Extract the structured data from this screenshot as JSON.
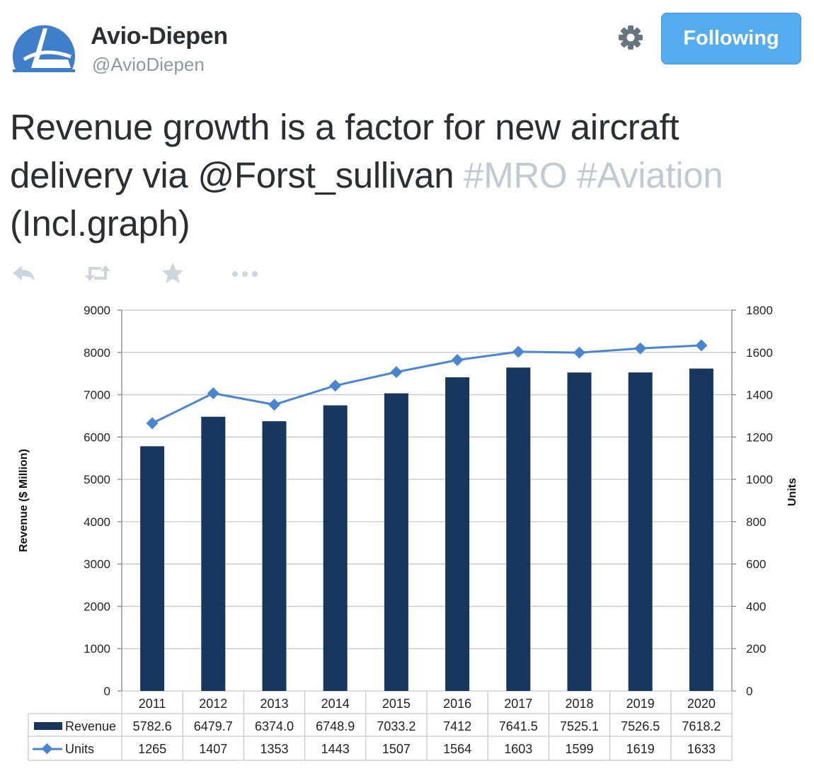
{
  "tweet": {
    "author_name": "Avio-Diepen",
    "author_handle": "@AvioDiepen",
    "follow_label": "Following",
    "text_parts": {
      "line1": "Revenue growth is a factor for new aircraft",
      "line2_prefix": "delivery via @Forst_sullivan",
      "hashtag1": "#MRO",
      "hashtag2": "#Aviation",
      "line3": "(Incl.graph)"
    },
    "actions": {
      "reply_icon": "reply-icon",
      "retweet_icon": "retweet-icon",
      "favorite_icon": "star-icon",
      "more_icon": "more-icon"
    }
  },
  "colors": {
    "brand_blue": "#55acee",
    "bar": "#17375e",
    "line": "#4a86d0",
    "hashtag": "#bfcbd3"
  },
  "chart_data": {
    "type": "bar",
    "categories": [
      "2011",
      "2012",
      "2013",
      "2014",
      "2015",
      "2016",
      "2017",
      "2018",
      "2019",
      "2020"
    ],
    "series": [
      {
        "name": "Revenue",
        "type": "bar",
        "axis": "left",
        "values": [
          5782.6,
          6479.7,
          6374.0,
          6748.9,
          7033.2,
          7412,
          7641.5,
          7525.1,
          7526.5,
          7618.2
        ],
        "labels": [
          "5782.6",
          "6479.7",
          "6374.0",
          "6748.9",
          "7033.2",
          "7412",
          "7641.5",
          "7525.1",
          "7526.5",
          "7618.2"
        ]
      },
      {
        "name": "Units",
        "type": "line",
        "axis": "right",
        "values": [
          1265,
          1407,
          1353,
          1443,
          1507,
          1564,
          1603,
          1599,
          1619,
          1633
        ],
        "labels": [
          "1265",
          "1407",
          "1353",
          "1443",
          "1507",
          "1564",
          "1603",
          "1599",
          "1619",
          "1633"
        ]
      }
    ],
    "ylabel": "Revenue ($ Million)",
    "y2label": "Units",
    "ylim": [
      0,
      9000
    ],
    "y2lim": [
      0,
      1800
    ],
    "yticks": [
      "0",
      "1000",
      "2000",
      "3000",
      "4000",
      "5000",
      "6000",
      "7000",
      "8000",
      "9000"
    ],
    "y2ticks": [
      "0",
      "200",
      "400",
      "600",
      "800",
      "1000",
      "1200",
      "1400",
      "1600",
      "1800"
    ],
    "grid": true,
    "data_table": true
  }
}
